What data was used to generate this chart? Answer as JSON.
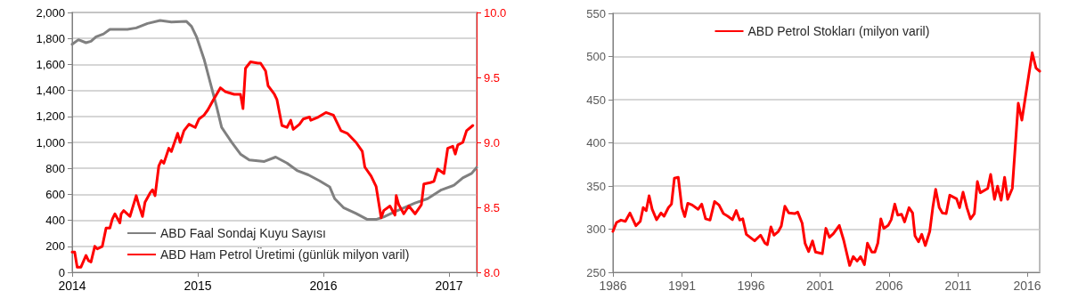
{
  "chart_data": [
    {
      "type": "line",
      "xlim": [
        2014,
        2017.22
      ],
      "xticks": [
        2014,
        2015,
        2016,
        2017
      ],
      "ylim": [
        0,
        2000
      ],
      "yticks": [
        {
          "value": 0,
          "label": "0"
        },
        {
          "value": 200,
          "label": "200"
        },
        {
          "value": 400,
          "label": "400"
        },
        {
          "value": 600,
          "label": "600"
        },
        {
          "value": 800,
          "label": "800"
        },
        {
          "value": 1000,
          "label": "1,000"
        },
        {
          "value": 1200,
          "label": "1,200"
        },
        {
          "value": 1400,
          "label": "1,400"
        },
        {
          "value": 1600,
          "label": "1,600"
        },
        {
          "value": 1800,
          "label": "1,800"
        },
        {
          "value": 2000,
          "label": "2,000"
        }
      ],
      "y2lim": [
        8,
        10
      ],
      "y2ticks": [
        {
          "value": 8,
          "label": "8.0"
        },
        8.5,
        {
          "value": 9,
          "label": "9.0"
        },
        9.5,
        {
          "value": 10,
          "label": "10.0"
        }
      ],
      "grid": "y",
      "legend": "bottom",
      "series": [
        {
          "name": "ABD Faal Sondaj Kuyu Sayısı",
          "color": "#808080",
          "x": [
            2014,
            2014.05,
            2014.11,
            2014.15,
            2014.19,
            2014.25,
            2014.3,
            2014.37,
            2014.44,
            2014.51,
            2014.6,
            2014.7,
            2014.79,
            2014.91,
            2014.95,
            2014.99,
            2015.05,
            2015.1,
            2015.15,
            2015.19,
            2015.27,
            2015.34,
            2015.41,
            2015.53,
            2015.62,
            2015.71,
            2015.79,
            2015.88,
            2015.97,
            2016.05,
            2016.09,
            2016.16,
            2016.26,
            2016.35,
            2016.42,
            2016.49,
            2016.59,
            2016.73,
            2016.83,
            2016.94,
            2017.04,
            2017.11,
            2017.18,
            2017.22
          ],
          "values": [
            1755,
            1790,
            1767,
            1778,
            1813,
            1835,
            1870,
            1870,
            1870,
            1881,
            1915,
            1938,
            1927,
            1931,
            1893,
            1813,
            1641,
            1458,
            1275,
            1115,
            1001,
            910,
            864,
            853,
            887,
            841,
            784,
            750,
            704,
            658,
            567,
            498,
            453,
            407,
            407,
            430,
            475,
            533,
            567,
            635,
            670,
            727,
            761,
            807
          ]
        },
        {
          "name": "ABD Ham Petrol Üretimi (günlük milyon varil)",
          "color": "#ff0000",
          "axis": "y2",
          "x": [
            2014,
            2014.02,
            2014.04,
            2014.07,
            2014.11,
            2014.13,
            2014.15,
            2014.18,
            2014.2,
            2014.24,
            2014.27,
            2014.3,
            2014.32,
            2014.34,
            2014.38,
            2014.39,
            2014.41,
            2014.46,
            2014.51,
            2014.53,
            2014.56,
            2014.58,
            2014.62,
            2014.64,
            2014.66,
            2014.69,
            2014.71,
            2014.73,
            2014.77,
            2014.79,
            2014.84,
            2014.86,
            2014.89,
            2014.93,
            2014.98,
            2015.01,
            2015.05,
            2015.08,
            2015.12,
            2015.18,
            2015.22,
            2015.29,
            2015.34,
            2015.36,
            2015.38,
            2015.42,
            2015.48,
            2015.5,
            2015.54,
            2015.56,
            2015.58,
            2015.61,
            2015.63,
            2015.67,
            2015.71,
            2015.74,
            2015.76,
            2015.81,
            2015.84,
            2015.89,
            2015.9,
            2015.96,
            2016.02,
            2016.08,
            2016.14,
            2016.19,
            2016.26,
            2016.31,
            2016.33,
            2016.38,
            2016.42,
            2016.46,
            2016.48,
            2016.53,
            2016.57,
            2016.58,
            2016.6,
            2016.64,
            2016.68,
            2016.73,
            2016.78,
            2016.8,
            2016.85,
            2016.88,
            2016.91,
            2016.96,
            2016.99,
            2017.03,
            2017.05,
            2017.07,
            2017.11,
            2017.14,
            2017.19
          ],
          "values": [
            8.155,
            8.155,
            8.04,
            8.04,
            8.13,
            8.09,
            8.08,
            8.2,
            8.18,
            8.2,
            8.34,
            8.34,
            8.41,
            8.45,
            8.38,
            8.45,
            8.475,
            8.43,
            8.59,
            8.52,
            8.43,
            8.54,
            8.61,
            8.635,
            8.59,
            8.82,
            8.86,
            8.84,
            8.955,
            8.93,
            9.07,
            9,
            9.09,
            9.14,
            9.115,
            9.18,
            9.21,
            9.25,
            9.32,
            9.42,
            9.39,
            9.37,
            9.37,
            9.26,
            9.57,
            9.62,
            9.61,
            9.61,
            9.55,
            9.435,
            9.41,
            9.37,
            9.33,
            9.13,
            9.115,
            9.17,
            9.1,
            9.14,
            9.18,
            9.195,
            9.17,
            9.195,
            9.23,
            9.21,
            9.09,
            9.07,
            9,
            8.93,
            8.81,
            8.74,
            8.66,
            8.42,
            8.475,
            8.51,
            8.44,
            8.59,
            8.52,
            8.45,
            8.51,
            8.45,
            8.52,
            8.68,
            8.69,
            8.7,
            8.795,
            8.76,
            8.955,
            8.97,
            8.91,
            8.98,
            9,
            9.09,
            9.13
          ]
        }
      ]
    },
    {
      "type": "line",
      "xlim": [
        1986,
        2016.9
      ],
      "xticks": [
        1986,
        1991,
        1996,
        2001,
        2006,
        2011,
        2016
      ],
      "ylim": [
        250,
        550
      ],
      "yticks": [
        250,
        300,
        350,
        400,
        450,
        500,
        550
      ],
      "grid": "y",
      "legend": "top",
      "series": [
        {
          "name": "ABD Petrol Stokları (milyon varil)",
          "color": "#ff0000",
          "x": [
            1986,
            1986.26,
            1986.58,
            1986.9,
            1987.23,
            1987.66,
            1987.98,
            1988.19,
            1988.41,
            1988.62,
            1988.84,
            1989.16,
            1989.48,
            1989.7,
            1990.02,
            1990.24,
            1990.45,
            1990.73,
            1990.99,
            1991.2,
            1991.42,
            1991.74,
            1992.17,
            1992.43,
            1992.71,
            1993.03,
            1993.36,
            1993.68,
            1994,
            1994.32,
            1994.65,
            1994.93,
            1995.18,
            1995.4,
            1995.66,
            1996.26,
            1996.69,
            1997.01,
            1997.18,
            1997.44,
            1997.66,
            1997.98,
            1998.19,
            1998.45,
            1998.73,
            1999.16,
            1999.38,
            1999.7,
            1999.91,
            2000.17,
            2000.45,
            2000.67,
            2001.16,
            2001.42,
            2001.68,
            2001.96,
            2002.39,
            2002.71,
            2003.14,
            2003.4,
            2003.68,
            2003.93,
            2004.21,
            2004.43,
            2004.75,
            2004.97,
            2005.18,
            2005.4,
            2005.61,
            2005.93,
            2006.15,
            2006.41,
            2006.62,
            2006.9,
            2007.12,
            2007.44,
            2007.7,
            2007.87,
            2008.13,
            2008.36,
            2008.62,
            2008.94,
            2009.16,
            2009.37,
            2009.63,
            2009.85,
            2010.13,
            2010.39,
            2010.88,
            2011.1,
            2011.35,
            2011.63,
            2011.89,
            2012.17,
            2012.39,
            2012.6,
            2013.14,
            2013.35,
            2013.63,
            2013.85,
            2014.11,
            2014.36,
            2014.58,
            2014.92,
            2015.35,
            2015.61,
            2016.36,
            2016.64,
            2016.9
          ],
          "values": [
            297.4,
            307.7,
            310.5,
            309,
            318.7,
            304,
            309,
            325,
            321.5,
            338.6,
            323,
            311,
            318.7,
            315,
            325,
            329,
            359,
            360,
            325,
            314.6,
            330,
            328,
            323,
            329,
            312,
            310.5,
            332,
            328,
            318,
            315,
            311,
            321.5,
            310.5,
            312,
            294,
            286.4,
            293,
            283.7,
            282,
            302.6,
            293,
            297.4,
            303.6,
            326.6,
            318.7,
            318,
            319.7,
            307,
            283.7,
            274,
            286.4,
            273.4,
            271.6,
            300.9,
            290.5,
            294.7,
            304.3,
            287.1,
            257.9,
            268.2,
            263,
            268.2,
            258.9,
            283.7,
            273.4,
            273.4,
            283.7,
            311.8,
            300.9,
            304.3,
            311,
            329,
            316.3,
            317.3,
            308.4,
            324.9,
            318.7,
            292.3,
            285.4,
            294,
            281,
            297.4,
            324.9,
            346.2,
            324.9,
            318.7,
            318,
            339.3,
            335.2,
            324.9,
            342.8,
            324.9,
            311.8,
            318,
            355.1,
            342.1,
            347.2,
            363.4,
            334.5,
            349.7,
            333.5,
            360,
            334.5,
            347.2,
            445.8,
            426.3,
            504.3,
            486.4,
            483
          ]
        }
      ]
    }
  ]
}
